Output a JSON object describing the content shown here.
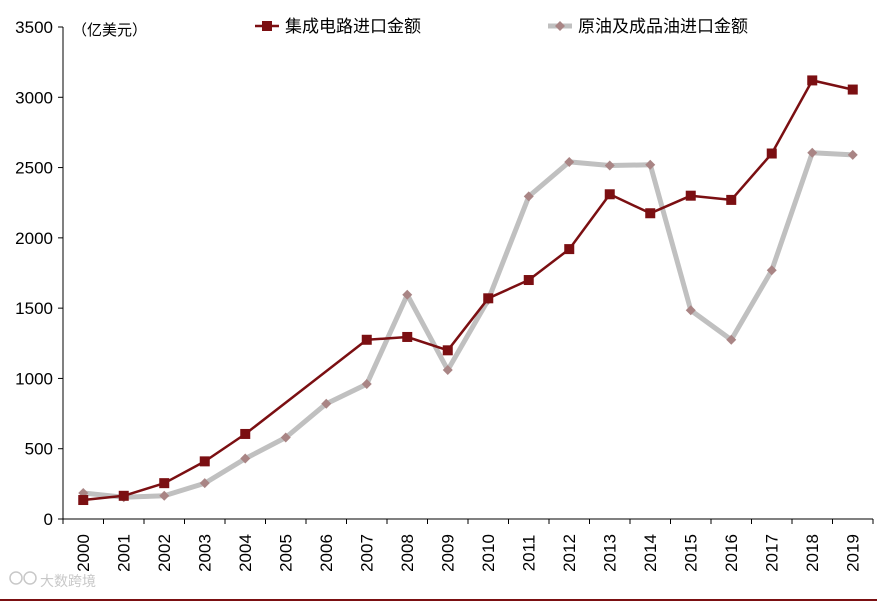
{
  "chart_data": {
    "type": "line",
    "unit_label": "（亿美元）",
    "x": [
      "2000",
      "2001",
      "2002",
      "2003",
      "2004",
      "2005",
      "2006",
      "2007",
      "2008",
      "2009",
      "2010",
      "2011",
      "2012",
      "2013",
      "2014",
      "2015",
      "2016",
      "2017",
      "2018",
      "2019"
    ],
    "ylim": [
      0,
      3500
    ],
    "yticks": [
      0,
      500,
      1000,
      1500,
      2000,
      2500,
      3000,
      3500
    ],
    "grid": false,
    "legend_position": "top",
    "series": [
      {
        "name": "集成电路进口金额",
        "color": "#7b0f12",
        "marker": "square",
        "values": [
          135,
          165,
          255,
          410,
          605,
          null,
          null,
          1275,
          1295,
          1200,
          1570,
          1700,
          1920,
          2310,
          2175,
          2300,
          2270,
          2600,
          3120,
          3055
        ]
      },
      {
        "name": "原油及成品油进口金额",
        "color": "#c0c0c0",
        "marker": "diamond",
        "values": [
          185,
          155,
          165,
          255,
          430,
          580,
          820,
          960,
          1595,
          1060,
          1560,
          2295,
          2540,
          2515,
          2520,
          1485,
          1275,
          1770,
          2605,
          2590
        ]
      }
    ],
    "watermark": "大数跨境"
  }
}
